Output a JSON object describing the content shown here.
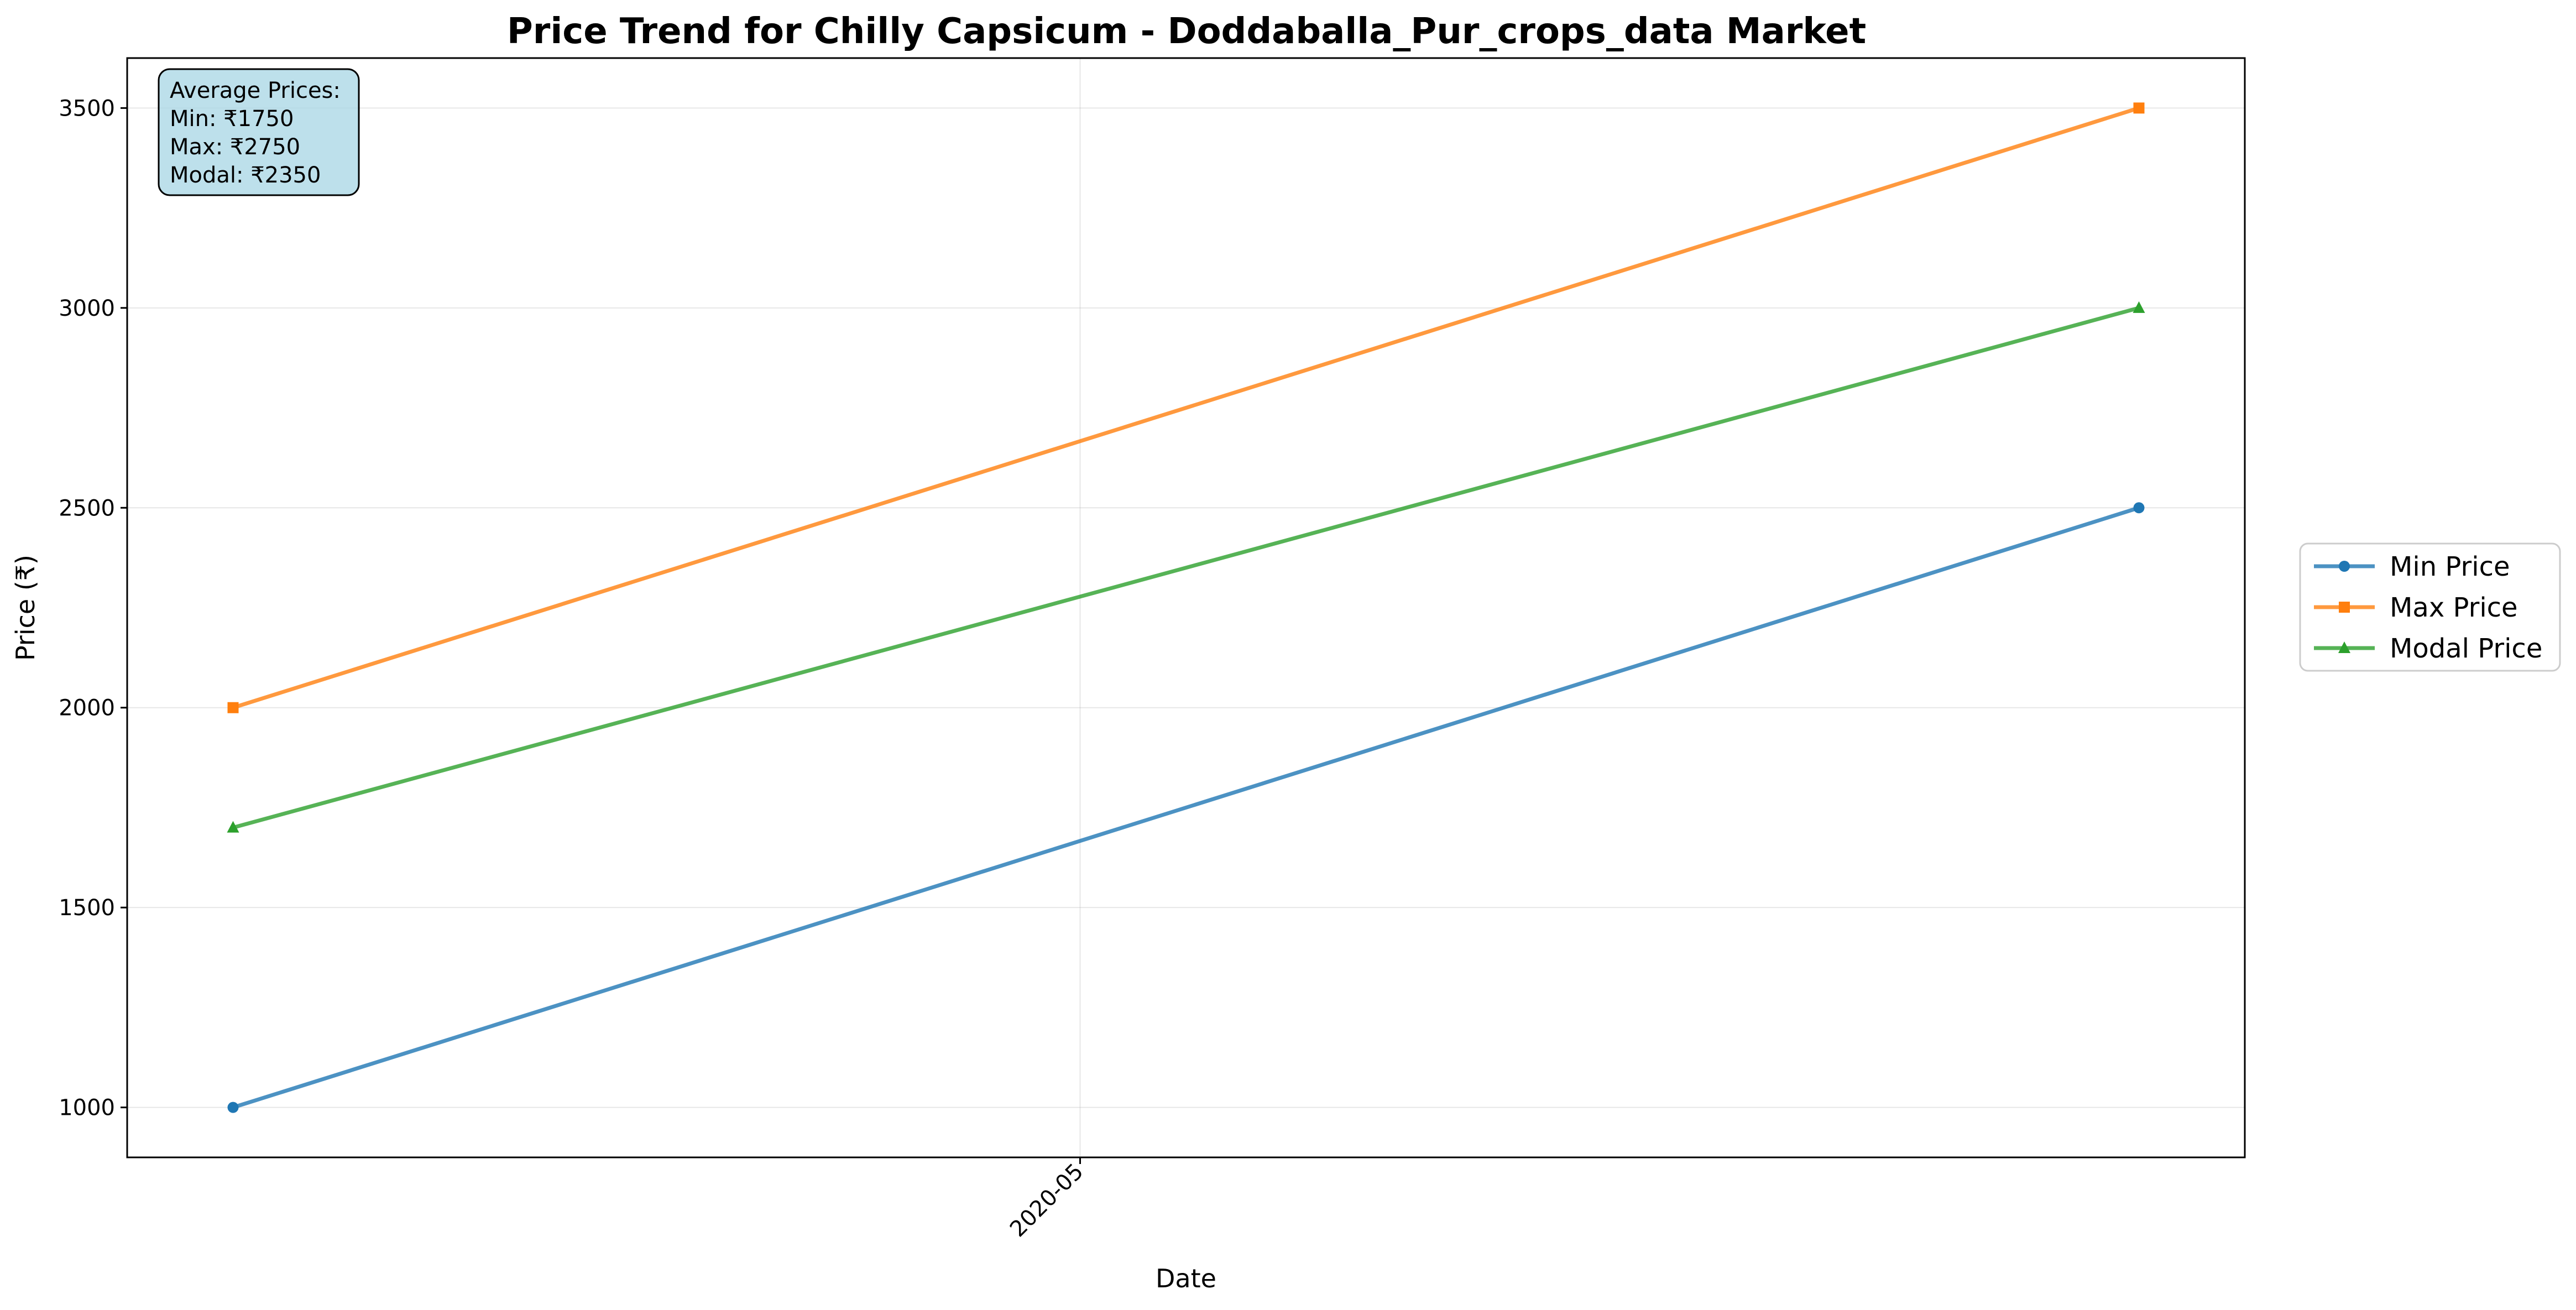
{
  "chart_data": {
    "type": "line",
    "title": "Price Trend for Chilly Capsicum - Doddaballa_Pur_crops_data Market",
    "xlabel": "Date",
    "ylabel": "Price (₹)",
    "x": [
      "2020-04-15",
      "2020-05-21"
    ],
    "x_ticks": [
      {
        "date": "2020-05-01",
        "label": "2020-05"
      }
    ],
    "xlim": [
      "2020-04-13",
      "2020-05-23"
    ],
    "ylim": [
      875,
      3625
    ],
    "y_ticks": [
      1000,
      1500,
      2000,
      2500,
      3000,
      3500
    ],
    "grid": true,
    "legend_position": "right-outside",
    "series": [
      {
        "name": "Min Price",
        "values": [
          1000,
          2500
        ],
        "color": "#1f77b4",
        "marker": "circle"
      },
      {
        "name": "Max Price",
        "values": [
          2000,
          3500
        ],
        "color": "#ff7f0e",
        "marker": "square"
      },
      {
        "name": "Modal Price",
        "values": [
          1700,
          3000
        ],
        "color": "#2ca02c",
        "marker": "triangle"
      }
    ],
    "annotation": {
      "lines": [
        "Average Prices:",
        "Min: ₹1750",
        "Max: ₹2750",
        "Modal: ₹2350"
      ],
      "fill": "#add8e6",
      "placement": "top-left"
    }
  }
}
